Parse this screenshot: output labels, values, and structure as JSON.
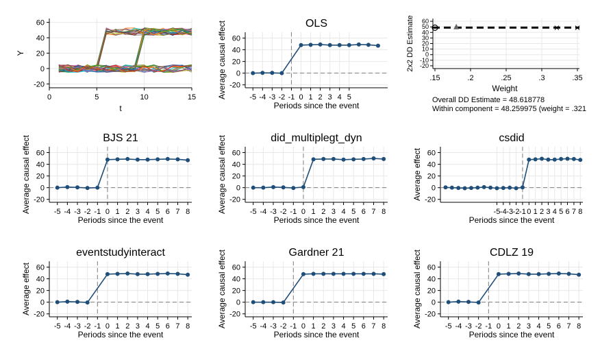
{
  "colors": {
    "series": "#1f4e79",
    "zero_line": "#7f7f7f",
    "grid": "#e8e8e8",
    "dd_line": "#000000"
  },
  "chart_data": [
    {
      "type": "line",
      "title": "",
      "xlabel": "t",
      "ylabel": "Y",
      "xlim": [
        0,
        15
      ],
      "ylim": [
        -25,
        65
      ],
      "xticks": [
        "0",
        "5",
        "10",
        "15"
      ],
      "yticks": [
        "-20",
        "0",
        "20",
        "40",
        "60"
      ],
      "x": [
        1,
        2,
        3,
        4,
        5,
        6,
        7,
        8,
        9,
        10,
        11,
        12,
        13,
        14,
        15
      ],
      "series_description_groups": [
        {
          "treated_at": 6,
          "pre_level": 0,
          "post_level": 48,
          "count": 14
        },
        {
          "treated_at": 10,
          "pre_level": 0,
          "post_level": 48,
          "count": 14
        },
        {
          "treated_at": null,
          "pre_level": 0,
          "post_level": 0,
          "count": 14
        }
      ],
      "grid": true
    },
    {
      "type": "line",
      "title": "OLS",
      "xlabel": "Periods since the event",
      "ylabel": "Average causal effect",
      "ylim": [
        -25,
        70
      ],
      "yticks": [
        "-20",
        "0",
        "20",
        "40",
        "60"
      ],
      "xticks": [
        "-5",
        "-4",
        "-3",
        "-2",
        "-1",
        "0",
        "1",
        "2",
        "3",
        "4",
        "5"
      ],
      "x": [
        -5,
        -4,
        -3,
        -2,
        0,
        1,
        2,
        3,
        4,
        5,
        6,
        7,
        8
      ],
      "values": [
        0,
        0.5,
        0.5,
        0,
        48,
        48.5,
        49,
        48,
        48,
        48,
        49,
        48.5,
        47
      ],
      "reference_line_x": -1,
      "grid": true
    },
    {
      "type": "scatter",
      "title": "",
      "xlabel": "Weight",
      "ylabel": "2x2 DD Estimate",
      "xlim": [
        0.15,
        0.35
      ],
      "ylim": [
        -25,
        65
      ],
      "xticks": [
        ".15",
        ".2",
        ".25",
        ".3",
        ".35"
      ],
      "yticks": [
        "-20",
        "-10",
        "0",
        "10",
        "20",
        "30",
        "40",
        "50",
        "60"
      ],
      "points": [
        {
          "x": 0.15,
          "y": 48.5,
          "marker": "circle"
        },
        {
          "x": 0.18,
          "y": 49.5,
          "marker": "triangle"
        },
        {
          "x": 0.321,
          "y": 48.3,
          "marker": "x"
        },
        {
          "x": 0.35,
          "y": 48.3,
          "marker": "x"
        }
      ],
      "overall_line_y": 48.618778,
      "notes": [
        "Overall DD Estimate = 48.618778",
        "Within component = 48.259975 (weight = .321"
      ],
      "grid": true
    },
    {
      "type": "line",
      "title": "BJS 21",
      "xlabel": "Periods since the event",
      "ylabel": "Average causal effect",
      "ylim": [
        -25,
        70
      ],
      "yticks": [
        "-20",
        "0",
        "20",
        "40",
        "60"
      ],
      "xticks": [
        "-5",
        "-4",
        "-3",
        "-2",
        "-1",
        "0",
        "1",
        "2",
        "3",
        "4",
        "5",
        "6",
        "7",
        "8"
      ],
      "x": [
        -5,
        -4,
        -3,
        -2,
        -1,
        0,
        1,
        2,
        3,
        4,
        5,
        6,
        7,
        8
      ],
      "values": [
        0,
        1,
        0.5,
        -0.5,
        0,
        48,
        48.5,
        49,
        48,
        48,
        48.5,
        49,
        48.5,
        47
      ],
      "reference_line_x": 0,
      "grid": true
    },
    {
      "type": "line",
      "title": "did_multiplegt_dyn",
      "xlabel": "Periods since the event",
      "ylabel": "Average causal effect",
      "ylim": [
        -25,
        70
      ],
      "yticks": [
        "-20",
        "0",
        "20",
        "40",
        "60"
      ],
      "xticks": [
        "-5",
        "-4",
        "-3",
        "-2",
        "-1",
        "0",
        "1",
        "2",
        "3",
        "4",
        "5",
        "6",
        "7",
        "8"
      ],
      "x": [
        -5,
        -4,
        -3,
        -2,
        -1,
        0,
        1,
        2,
        3,
        4,
        5,
        6,
        7,
        8
      ],
      "values": [
        0,
        0,
        1,
        0.5,
        -0.5,
        1,
        48.5,
        49,
        49,
        48,
        48.5,
        49,
        50,
        49
      ],
      "reference_line_x": 0,
      "grid": true
    },
    {
      "type": "line",
      "title": "csdid",
      "xlabel": "Periods since the event",
      "ylabel": "Average effect",
      "ylim": [
        -25,
        70
      ],
      "yticks": [
        "-20",
        "0",
        "20",
        "40",
        "60"
      ],
      "xticks": [
        "-5",
        "-4",
        "-3",
        "-2",
        "-1",
        "0",
        "1",
        "2",
        "3",
        "4",
        "5",
        "6",
        "7",
        "8"
      ],
      "x": [
        -13,
        -12,
        -11,
        -10,
        -9,
        -8,
        -7,
        -6,
        -5,
        -4,
        -3,
        -2,
        -1,
        0,
        1,
        2,
        3,
        4,
        5,
        6,
        7,
        8
      ],
      "values": [
        0.5,
        0,
        -0.5,
        -1,
        -0.5,
        0,
        1,
        0,
        -1,
        -0.5,
        0,
        -1,
        0.5,
        48,
        48.5,
        49.5,
        48,
        48,
        49,
        49.5,
        49,
        47.5
      ],
      "reference_line_x": -1,
      "grid": true
    },
    {
      "type": "line",
      "title": "eventstudyinteract",
      "xlabel": "Periods since the event",
      "ylabel": "Average effect",
      "ylim": [
        -25,
        70
      ],
      "yticks": [
        "-20",
        "0",
        "20",
        "40",
        "60"
      ],
      "xticks": [
        "-5",
        "-4",
        "-3",
        "-2",
        "-1",
        "0",
        "1",
        "2",
        "3",
        "4",
        "5",
        "6",
        "7",
        "8"
      ],
      "x": [
        -5,
        -4,
        -3,
        -2,
        0,
        1,
        2,
        3,
        4,
        5,
        6,
        7,
        8
      ],
      "values": [
        0,
        1,
        0.5,
        -0.5,
        48,
        48.5,
        49,
        48,
        48,
        48.5,
        49,
        48.5,
        47
      ],
      "reference_line_x": -1,
      "grid": true
    },
    {
      "type": "line",
      "title": "Gardner 21",
      "xlabel": "Periods since the event",
      "ylabel": "Average causal effect",
      "ylim": [
        -25,
        70
      ],
      "yticks": [
        "-20",
        "0",
        "20",
        "40",
        "60"
      ],
      "xticks": [
        "-5",
        "-4",
        "-3",
        "-2",
        "-1",
        "0",
        "1",
        "2",
        "3",
        "4",
        "5",
        "6",
        "7",
        "8"
      ],
      "x": [
        -5,
        -4,
        -3,
        -2,
        0,
        1,
        2,
        3,
        4,
        5,
        6,
        7,
        8
      ],
      "values": [
        0,
        0,
        0,
        -0.5,
        48,
        48.5,
        48.5,
        48.5,
        48.5,
        48.5,
        48.5,
        48.5,
        48
      ],
      "reference_line_x": -1,
      "grid": true
    },
    {
      "type": "line",
      "title": "CDLZ 19",
      "xlabel": "Periods since the event",
      "ylabel": "Average causal effect",
      "ylim": [
        -25,
        70
      ],
      "yticks": [
        "-20",
        "0",
        "20",
        "40",
        "60"
      ],
      "xticks": [
        "-5",
        "-4",
        "-3",
        "-2",
        "-1",
        "0",
        "1",
        "2",
        "3",
        "4",
        "5",
        "6",
        "7",
        "8"
      ],
      "x": [
        -5,
        -4,
        -3,
        -2,
        0,
        1,
        2,
        3,
        4,
        5,
        6,
        7,
        8
      ],
      "values": [
        0,
        1,
        0.5,
        -0.5,
        48,
        48.5,
        49,
        48,
        48,
        48.5,
        49,
        48.5,
        47
      ],
      "reference_line_x": -1,
      "grid": true
    }
  ]
}
